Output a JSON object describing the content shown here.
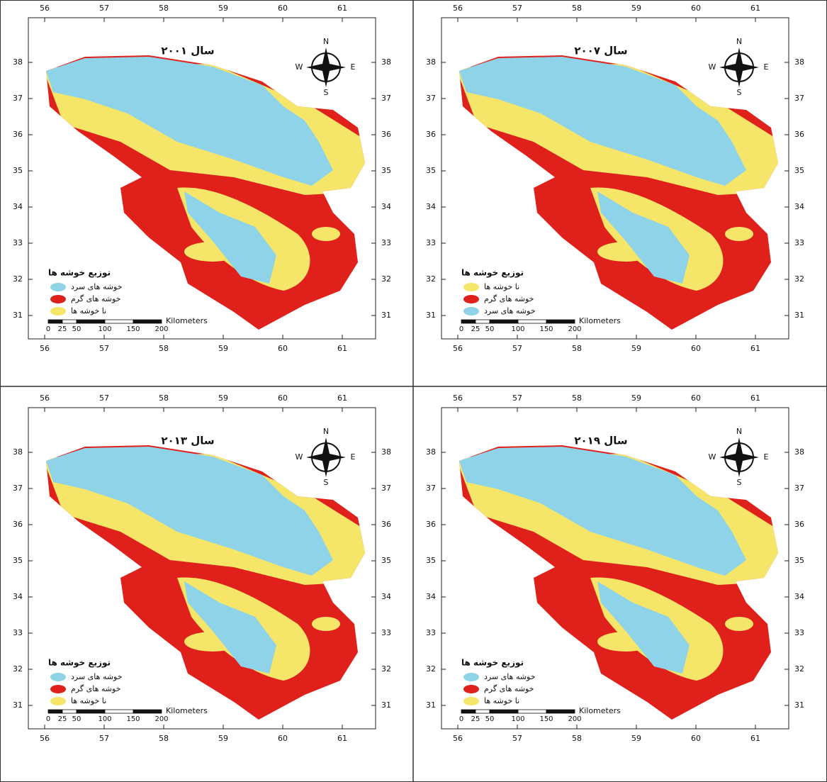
{
  "lon_ticks": [
    56,
    57,
    58,
    59,
    60,
    61
  ],
  "lat_ticks": [
    38,
    37,
    36,
    35,
    34,
    33,
    32,
    31
  ],
  "compass": {
    "n": "N",
    "e": "E",
    "s": "S",
    "w": "W"
  },
  "scale_bar": {
    "labels": [
      0,
      25,
      50,
      100,
      150,
      200
    ],
    "unit": "Kilometers"
  },
  "panels": [
    {
      "title": "سال ۲۰۰۱",
      "legend": {
        "title": "توزیع خوشه ها",
        "items": [
          {
            "label": "خوشه های سرد",
            "color": "#8fd3e8"
          },
          {
            "label": "خوشه های گرم",
            "color": "#e0201b"
          },
          {
            "label": "نا خوشه ها",
            "color": "#f5e66a"
          }
        ]
      }
    },
    {
      "title": "سال ۲۰۰۷",
      "legend": {
        "title": "توزیع خوشه ها",
        "items": [
          {
            "label": "نا خوشه ها",
            "color": "#f5e66a"
          },
          {
            "label": "خوشه های گرم",
            "color": "#e0201b"
          },
          {
            "label": "خوشه های سرد",
            "color": "#8fd3e8"
          }
        ]
      }
    },
    {
      "title": "سال ۲۰۱۳",
      "legend": {
        "title": "توزیع خوشه ها",
        "items": [
          {
            "label": "خوشه های سرد",
            "color": "#8fd3e8"
          },
          {
            "label": "خوشه های گرم",
            "color": "#e0201b"
          },
          {
            "label": "نا خوشه ها",
            "color": "#f5e66a"
          }
        ]
      }
    },
    {
      "title": "سال ۲۰۱۹",
      "legend": {
        "title": "توزیع خوشه ها",
        "items": [
          {
            "label": "خوشه های سرد",
            "color": "#8fd3e8"
          },
          {
            "label": "خوشه های گرم",
            "color": "#e0201b"
          },
          {
            "label": "نا خوشه ها",
            "color": "#f5e66a"
          }
        ]
      }
    }
  ]
}
